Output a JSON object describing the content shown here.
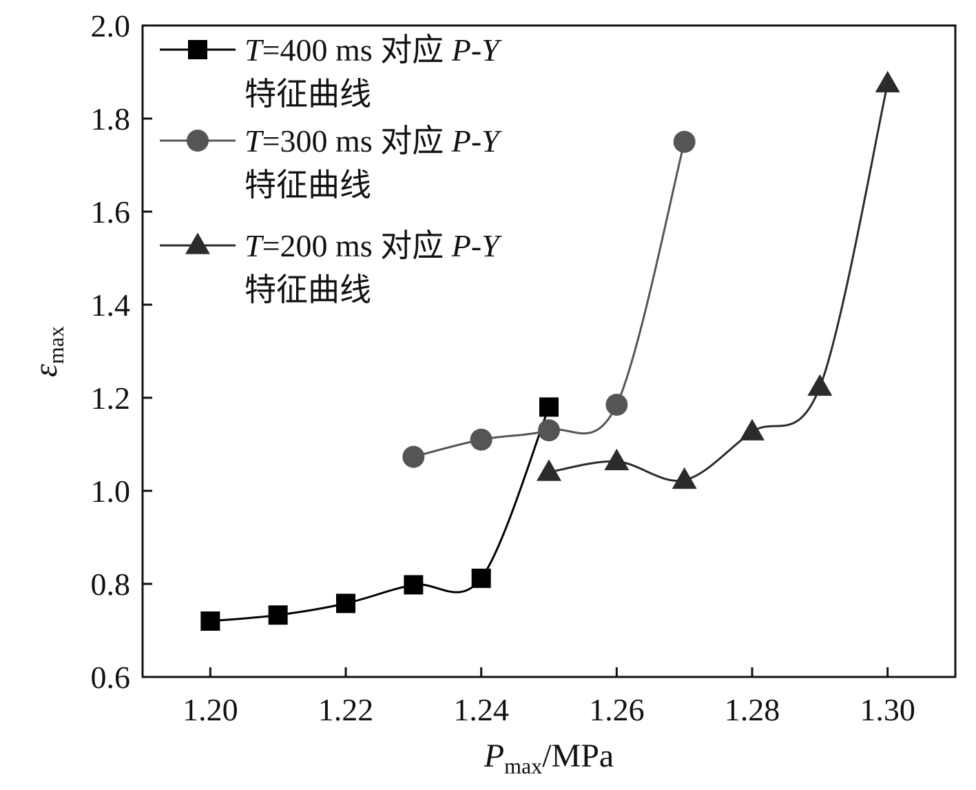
{
  "chart_data": {
    "type": "line",
    "xlabel": {
      "main": "P",
      "sub": "max",
      "unit": "/MPa"
    },
    "ylabel": {
      "main": "ε",
      "sub": "max"
    },
    "xlim": [
      1.19,
      1.31
    ],
    "ylim": [
      0.6,
      2.0
    ],
    "xticks": [
      "1.20",
      "1.22",
      "1.24",
      "1.26",
      "1.28",
      "1.30"
    ],
    "yticks": [
      "0.6",
      "0.8",
      "1.0",
      "1.2",
      "1.4",
      "1.6",
      "1.8",
      "2.0"
    ],
    "legend_position": "top-left",
    "series": [
      {
        "name_var": "T",
        "name_rest": "=400 ms 对应 ",
        "name_var2": "P-Y",
        "name_line2": "特征曲线",
        "marker": "square",
        "color": "#000000",
        "x": [
          1.2,
          1.21,
          1.22,
          1.23,
          1.24,
          1.25
        ],
        "y": [
          0.72,
          0.733,
          0.758,
          0.798,
          0.812,
          1.18
        ]
      },
      {
        "name_var": "T",
        "name_rest": "=300 ms 对应 ",
        "name_var2": "P-Y",
        "name_line2": "特征曲线",
        "marker": "circle",
        "color": "#555555",
        "x": [
          1.23,
          1.24,
          1.25,
          1.26,
          1.27
        ],
        "y": [
          1.073,
          1.11,
          1.13,
          1.185,
          1.75
        ]
      },
      {
        "name_var": "T",
        "name_rest": "=200 ms 对应 ",
        "name_var2": "P-Y",
        "name_line2": "特征曲线",
        "marker": "triangle",
        "color": "#2b2b2b",
        "x": [
          1.25,
          1.26,
          1.27,
          1.28,
          1.29,
          1.3
        ],
        "y": [
          1.04,
          1.063,
          1.023,
          1.127,
          1.223,
          1.875
        ]
      }
    ]
  }
}
